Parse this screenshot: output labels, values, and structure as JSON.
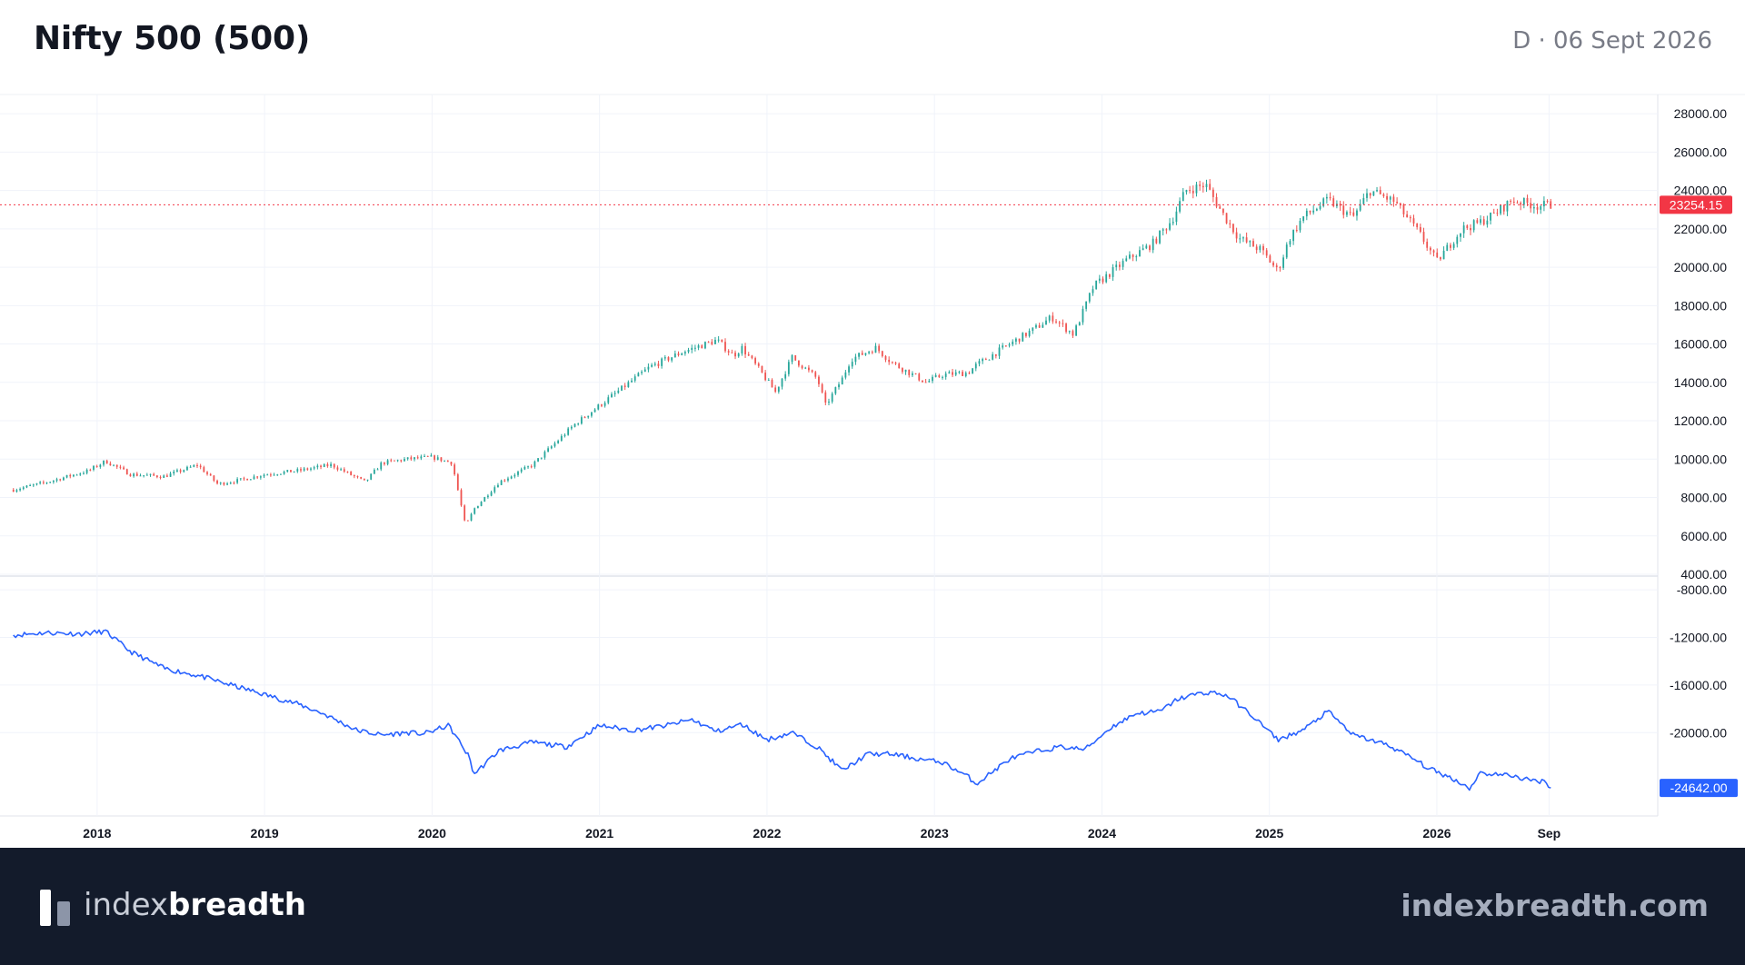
{
  "header": {
    "title": "Nifty 500 (500)",
    "date_info": "D · 06 Sept 2026"
  },
  "footer": {
    "logo_light": "index",
    "logo_bold": "breadth",
    "site": "indexbreadth.com"
  },
  "chart_data": [
    {
      "type": "candlestick",
      "title": "Nifty 500 (500)",
      "yticks": [
        "4000.00",
        "6000.00",
        "8000.00",
        "10000.00",
        "12000.00",
        "14000.00",
        "16000.00",
        "18000.00",
        "20000.00",
        "22000.00",
        "24000.00",
        "26000.00",
        "28000.00"
      ],
      "ylim": [
        4000,
        29000
      ],
      "last_value": "23254.15",
      "x": [
        2017.5,
        2017.7,
        2017.95,
        2018.05,
        2018.2,
        2018.4,
        2018.6,
        2018.72,
        2018.85,
        2019.0,
        2019.2,
        2019.4,
        2019.6,
        2019.7,
        2019.85,
        2020.0,
        2020.12,
        2020.2,
        2020.25,
        2020.4,
        2020.6,
        2020.85,
        2021.0,
        2021.15,
        2021.3,
        2021.5,
        2021.7,
        2021.8,
        2021.85,
        2021.95,
        2022.05,
        2022.15,
        2022.3,
        2022.35,
        2022.45,
        2022.5,
        2022.65,
        2022.75,
        2022.95,
        2023.05,
        2023.2,
        2023.25,
        2023.45,
        2023.6,
        2023.7,
        2023.83,
        2023.95,
        2024.15,
        2024.3,
        2024.42,
        2024.5,
        2024.62,
        2024.72,
        2024.82,
        2024.95,
        2025.05,
        2025.12,
        2025.2,
        2025.35,
        2025.5,
        2025.6,
        2025.75,
        2025.9,
        2026.0,
        2026.15,
        2026.25,
        2026.35,
        2026.45,
        2026.6,
        2026.68
      ],
      "close": [
        8400,
        8800,
        9400,
        9900,
        9200,
        9100,
        9700,
        8700,
        8900,
        9200,
        9400,
        9700,
        8800,
        9800,
        10000,
        10100,
        9800,
        6500,
        7400,
        8800,
        9700,
        11800,
        12800,
        13800,
        14800,
        15600,
        16200,
        15400,
        15800,
        14700,
        13500,
        15300,
        14200,
        12800,
        14200,
        15200,
        15800,
        15000,
        14000,
        14400,
        14500,
        14900,
        16000,
        16800,
        17400,
        16500,
        19000,
        20400,
        21200,
        22500,
        24000,
        24300,
        22800,
        21500,
        20900,
        19800,
        21500,
        22600,
        23500,
        22600,
        24000,
        23400,
        21700,
        20300,
        22000,
        22300,
        22800,
        23500,
        23200,
        23254
      ]
    },
    {
      "type": "line",
      "yticks": [
        "-8000.00",
        "-12000.00",
        "-16000.00",
        "-20000.00"
      ],
      "ylim": [
        -27000,
        -7000
      ],
      "last_value": "-24642.00",
      "color": "#2962ff",
      "x": [
        2017.5,
        2017.7,
        2017.9,
        2018.05,
        2018.2,
        2018.4,
        2018.6,
        2018.75,
        2018.9,
        2019.0,
        2019.1,
        2019.2,
        2019.35,
        2019.55,
        2019.7,
        2019.85,
        2019.95,
        2020.1,
        2020.22,
        2020.25,
        2020.4,
        2020.6,
        2020.8,
        2021.0,
        2021.2,
        2021.4,
        2021.55,
        2021.7,
        2021.85,
        2022.0,
        2022.15,
        2022.3,
        2022.45,
        2022.6,
        2022.75,
        2022.9,
        2023.05,
        2023.2,
        2023.25,
        2023.45,
        2023.6,
        2023.75,
        2023.9,
        2024.05,
        2024.2,
        2024.35,
        2024.45,
        2024.55,
        2024.65,
        2024.75,
        2024.9,
        2025.05,
        2025.2,
        2025.35,
        2025.5,
        2025.7,
        2025.85,
        2025.95,
        2026.1,
        2026.2,
        2026.25,
        2026.35,
        2026.45,
        2026.55,
        2026.65,
        2026.68
      ],
      "y": [
        -11800,
        -11600,
        -11700,
        -11500,
        -13200,
        -14600,
        -15200,
        -15800,
        -16400,
        -16800,
        -17200,
        -17600,
        -18400,
        -19800,
        -20200,
        -20000,
        -20100,
        -19400,
        -22000,
        -23500,
        -21500,
        -20800,
        -21200,
        -19400,
        -19800,
        -19400,
        -18900,
        -19900,
        -19300,
        -20600,
        -20000,
        -21200,
        -23200,
        -21800,
        -21800,
        -22200,
        -22500,
        -23700,
        -24300,
        -22200,
        -21600,
        -21200,
        -21400,
        -19600,
        -18400,
        -18200,
        -17200,
        -16800,
        -16600,
        -16900,
        -18600,
        -20600,
        -19800,
        -18200,
        -20200,
        -21000,
        -22100,
        -23000,
        -23900,
        -24700,
        -23400,
        -23500,
        -23600,
        -24000,
        -24100,
        -24642
      ]
    }
  ],
  "x_axis": {
    "ticks": [
      {
        "label": "2018",
        "value": 2018.0
      },
      {
        "label": "2019",
        "value": 2019.0
      },
      {
        "label": "2020",
        "value": 2020.0
      },
      {
        "label": "2021",
        "value": 2021.0
      },
      {
        "label": "2022",
        "value": 2022.0
      },
      {
        "label": "2023",
        "value": 2023.0
      },
      {
        "label": "2024",
        "value": 2024.0
      },
      {
        "label": "2025",
        "value": 2025.0
      },
      {
        "label": "2026",
        "value": 2026.0
      },
      {
        "label": "Sep",
        "value": 2026.67
      }
    ],
    "xlim": [
      2017.42,
      2027.84
    ]
  },
  "colors": {
    "up": "#26a69a",
    "down": "#ef5350",
    "grid": "#f0f3fa",
    "axis_text": "#131722",
    "price_line": "#f23645",
    "breadth_line": "#2962ff"
  }
}
